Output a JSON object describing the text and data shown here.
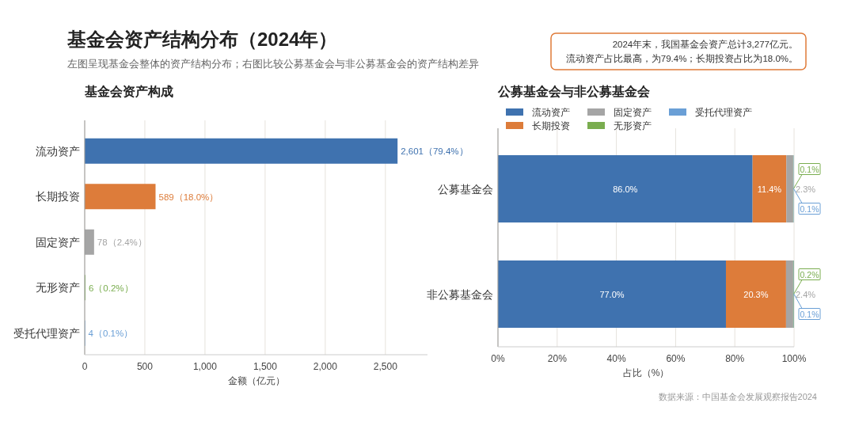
{
  "chart_data": [
    {
      "type": "other",
      "title": "基金会资产结构分布（2024年）",
      "subtitle": "左图呈现基金会整体的资产结构分布；右图比较公募基金会与非公募基金会的资产结构差异",
      "annotations": [
        "2024年末，我国基金会资产总计3,277亿元。",
        "流动资产占比最高，为79.4%；长期投资占比为18.0%。",
        "数据来源：中国基金会发展观察报告2024"
      ]
    },
    {
      "type": "bar",
      "orientation": "horizontal",
      "title": "基金会资产构成",
      "xlabel": "金额（亿元）",
      "categories": [
        "流动资产",
        "长期投资",
        "固定资产",
        "无形资产",
        "受托代理资产"
      ],
      "values": [
        2601,
        589,
        78,
        6,
        4
      ],
      "colors": [
        "#3f72af",
        "#dd7c3a",
        "#a5a5a5",
        "#7aad4f",
        "#6a9fd6"
      ],
      "value_labels": [
        "2,601（79.4%）",
        "589（18.0%）",
        "78（2.4%）",
        "6（0.2%）",
        "4（0.1%）"
      ],
      "xlim": [
        0,
        2850
      ],
      "xticks": [
        0,
        500,
        {
          "value": 1000,
          "label": "1,000"
        },
        {
          "value": 1500,
          "label": "1,500"
        },
        {
          "value": 2000,
          "label": "2,000"
        },
        {
          "value": 2500,
          "label": "2,500"
        }
      ],
      "grid": "x"
    },
    {
      "type": "bar",
      "orientation": "horizontal",
      "stacked": true,
      "title": "公募基金会与非公募基金会",
      "xlabel": "占比（%）",
      "categories": [
        "公募基金会",
        "非公募基金会"
      ],
      "series": [
        {
          "name": "流动资产",
          "color": "#3f72af",
          "values": [
            86.0,
            77.0
          ],
          "value_labels": [
            "86.0%",
            "77.0%"
          ]
        },
        {
          "name": "长期投资",
          "color": "#dd7c3a",
          "values": [
            11.4,
            20.3
          ],
          "value_labels": [
            "11.4%",
            "20.3%"
          ]
        },
        {
          "name": "固定资产",
          "color": "#a5a5a5",
          "values": [
            2.3,
            2.4
          ],
          "value_labels": [
            "2.3%",
            "2.4%"
          ]
        },
        {
          "name": "无形资产",
          "color": "#7aad4f",
          "values": [
            0.1,
            0.2
          ],
          "value_labels": [
            "0.1%",
            "0.2%"
          ]
        },
        {
          "name": "受托代理资产",
          "color": "#6a9fd6",
          "values": [
            0.1,
            0.1
          ],
          "value_labels": [
            "0.1%",
            "0.1%"
          ]
        }
      ],
      "xlim": [
        0,
        100
      ],
      "xticks": [
        {
          "value": 0,
          "label": "0%"
        },
        {
          "value": 20,
          "label": "20%"
        },
        {
          "value": 40,
          "label": "40%"
        },
        {
          "value": 60,
          "label": "60%"
        },
        {
          "value": 80,
          "label": "80%"
        },
        {
          "value": 100,
          "label": "100%"
        }
      ],
      "grid": "x",
      "legend": "top"
    }
  ]
}
